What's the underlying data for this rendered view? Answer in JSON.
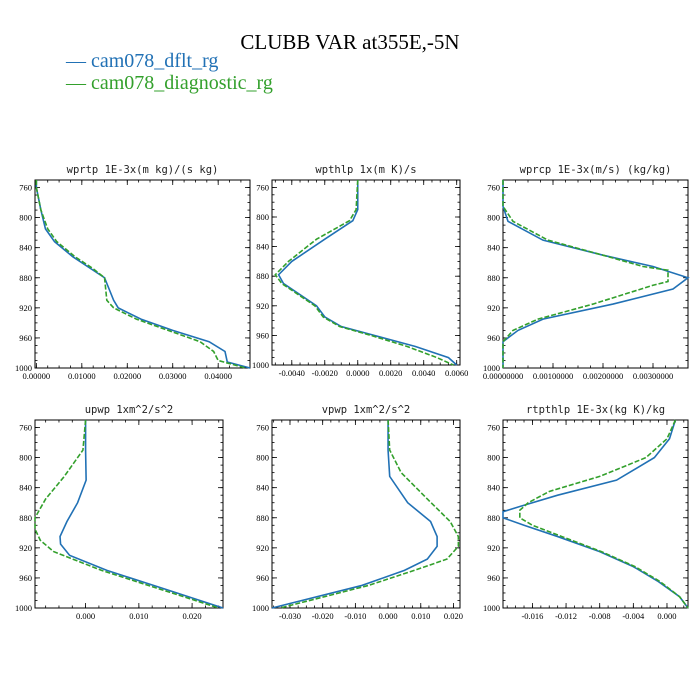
{
  "title": "CLUBB VAR at355E,-5N",
  "legend": [
    {
      "label": "— cam078_dflt_rg",
      "color": "#2171b5"
    },
    {
      "label": "— cam078_diagnostic_rg",
      "color": "#33a02c"
    }
  ],
  "chart_data": [
    {
      "type": "line",
      "title": "wprtp  1E-3x(m kg)/(s kg)",
      "xlim": [
        -0.0003,
        0.047
      ],
      "ylim": [
        1000,
        750
      ],
      "yticks": [
        760,
        800,
        840,
        880,
        920,
        960,
        1000
      ],
      "xticks": [
        0,
        0.01,
        0.02,
        0.03,
        0.04
      ],
      "xtick_labels": [
        "0.00000",
        "0.01000",
        "0.02000",
        "0.03000",
        "0.04000"
      ],
      "series": [
        {
          "name": "cam078_dflt_rg",
          "color": "#2171b5",
          "points": [
            [
              0.0,
              750
            ],
            [
              0.0,
              760
            ],
            [
              0.001,
              790
            ],
            [
              0.002,
              815
            ],
            [
              0.004,
              832
            ],
            [
              0.008,
              852
            ],
            [
              0.012,
              868
            ],
            [
              0.015,
              880
            ],
            [
              0.017,
              910
            ],
            [
              0.018,
              920
            ],
            [
              0.023,
              935
            ],
            [
              0.03,
              950
            ],
            [
              0.038,
              965
            ],
            [
              0.0415,
              978
            ],
            [
              0.042,
              992
            ],
            [
              0.047,
              1000
            ]
          ]
        },
        {
          "name": "cam078_diagnostic_rg",
          "color": "#33a02c",
          "points": [
            [
              0.0,
              750
            ],
            [
              0.0,
              760
            ],
            [
              0.001,
              790
            ],
            [
              0.0025,
              815
            ],
            [
              0.0045,
              832
            ],
            [
              0.0085,
              852
            ],
            [
              0.0125,
              868
            ],
            [
              0.015,
              880
            ],
            [
              0.0155,
              910
            ],
            [
              0.017,
              920
            ],
            [
              0.022,
              935
            ],
            [
              0.029,
              950
            ],
            [
              0.036,
              965
            ],
            [
              0.039,
              978
            ],
            [
              0.04,
              990
            ],
            [
              0.046,
              1000
            ]
          ]
        }
      ]
    },
    {
      "type": "line",
      "title": "wpthlp  1x(m K)/s",
      "xlim": [
        -0.0052,
        0.0062
      ],
      "ylim": [
        1000,
        750
      ],
      "yticks": [
        760,
        800,
        840,
        880,
        920,
        960,
        1000
      ],
      "xticks": [
        -0.004,
        -0.002,
        0,
        0.002,
        0.004,
        0.006
      ],
      "xtick_labels": [
        "-0.0040",
        "-0.0020",
        "0.0000",
        "0.0020",
        "0.0040",
        "0.0060"
      ],
      "series": [
        {
          "name": "cam078_dflt_rg",
          "color": "#2171b5",
          "points": [
            [
              0.0,
              750
            ],
            [
              0.0,
              790
            ],
            [
              -0.0003,
              805
            ],
            [
              -0.002,
              830
            ],
            [
              -0.004,
              860
            ],
            [
              -0.0048,
              878
            ],
            [
              -0.0045,
              890
            ],
            [
              -0.0035,
              905
            ],
            [
              -0.0025,
              920
            ],
            [
              -0.002,
              935
            ],
            [
              -0.001,
              948
            ],
            [
              0.001,
              960
            ],
            [
              0.0035,
              975
            ],
            [
              0.0055,
              990
            ],
            [
              0.006,
              1000
            ]
          ]
        },
        {
          "name": "cam078_diagnostic_rg",
          "color": "#33a02c",
          "points": [
            [
              0.0,
              750
            ],
            [
              -0.0001,
              790
            ],
            [
              -0.0005,
              805
            ],
            [
              -0.0025,
              830
            ],
            [
              -0.0042,
              860
            ],
            [
              -0.005,
              878
            ],
            [
              -0.0046,
              890
            ],
            [
              -0.0036,
              905
            ],
            [
              -0.0026,
              920
            ],
            [
              -0.0021,
              935
            ],
            [
              -0.0011,
              948
            ],
            [
              0.0008,
              960
            ],
            [
              0.003,
              975
            ],
            [
              0.0048,
              990
            ],
            [
              0.0058,
              1000
            ]
          ]
        }
      ]
    },
    {
      "type": "line",
      "title": "wprcp  1E-3x(m/s) (kg/kg)",
      "xlim": [
        0.0,
        0.0037
      ],
      "ylim": [
        1000,
        750
      ],
      "yticks": [
        760,
        800,
        840,
        880,
        920,
        960,
        1000
      ],
      "xticks": [
        0,
        0.001,
        0.002,
        0.003
      ],
      "xtick_labels": [
        "0.00000000",
        "0.00100000",
        "0.00200000",
        "0.00300000"
      ],
      "series": [
        {
          "name": "cam078_dflt_rg",
          "color": "#2171b5",
          "points": [
            [
              0.0,
              750
            ],
            [
              0.0,
              785
            ],
            [
              0.0001,
              805
            ],
            [
              0.0008,
              830
            ],
            [
              0.002,
              850
            ],
            [
              0.003,
              865
            ],
            [
              0.0037,
              880
            ],
            [
              0.0034,
              895
            ],
            [
              0.0022,
              915
            ],
            [
              0.0008,
              935
            ],
            [
              0.0003,
              950
            ],
            [
              0.0,
              965
            ],
            [
              0.0,
              1000
            ]
          ]
        },
        {
          "name": "cam078_diagnostic_rg",
          "color": "#33a02c",
          "points": [
            [
              0.0,
              750
            ],
            [
              0.0,
              785
            ],
            [
              0.0002,
              805
            ],
            [
              0.0009,
              830
            ],
            [
              0.002,
              850
            ],
            [
              0.0028,
              865
            ],
            [
              0.0033,
              870
            ],
            [
              0.0033,
              885
            ],
            [
              0.003,
              890
            ],
            [
              0.0018,
              915
            ],
            [
              0.0007,
              935
            ],
            [
              0.0002,
              950
            ],
            [
              0.0,
              965
            ],
            [
              0.0,
              1000
            ]
          ]
        }
      ]
    },
    {
      "type": "line",
      "title": "upwp  1xm^2/s^2",
      "xlim": [
        -0.0095,
        0.0258
      ],
      "ylim": [
        1000,
        750
      ],
      "yticks": [
        760,
        800,
        840,
        880,
        920,
        960,
        1000
      ],
      "xticks": [
        0,
        0.01,
        0.02
      ],
      "xtick_labels": [
        "0.000",
        "0.010",
        "0.020"
      ],
      "series": [
        {
          "name": "cam078_dflt_rg",
          "color": "#2171b5",
          "points": [
            [
              0.0,
              750
            ],
            [
              0.0,
              790
            ],
            [
              0.0001,
              830
            ],
            [
              -0.0015,
              860
            ],
            [
              -0.0035,
              885
            ],
            [
              -0.0048,
              905
            ],
            [
              -0.0047,
              915
            ],
            [
              -0.003,
              930
            ],
            [
              0.004,
              950
            ],
            [
              0.015,
              975
            ],
            [
              0.0258,
              1000
            ]
          ]
        },
        {
          "name": "cam078_diagnostic_rg",
          "color": "#33a02c",
          "points": [
            [
              0.0,
              750
            ],
            [
              -0.0005,
              790
            ],
            [
              -0.004,
              825
            ],
            [
              -0.0075,
              855
            ],
            [
              -0.0095,
              880
            ],
            [
              -0.0095,
              895
            ],
            [
              -0.0085,
              910
            ],
            [
              -0.006,
              925
            ],
            [
              0.003,
              950
            ],
            [
              0.014,
              975
            ],
            [
              0.025,
              1000
            ]
          ]
        }
      ]
    },
    {
      "type": "line",
      "title": "vpwp  1xm^2/s^2",
      "xlim": [
        -0.0355,
        0.022
      ],
      "ylim": [
        1000,
        750
      ],
      "yticks": [
        760,
        800,
        840,
        880,
        920,
        960,
        1000
      ],
      "xticks": [
        -0.03,
        -0.02,
        -0.01,
        0,
        0.01,
        0.02
      ],
      "xtick_labels": [
        "-0.030",
        "-0.020",
        "-0.010",
        "0.000",
        "0.010",
        "0.020"
      ],
      "series": [
        {
          "name": "cam078_dflt_rg",
          "color": "#2171b5",
          "points": [
            [
              0.0,
              750
            ],
            [
              0.0,
              790
            ],
            [
              0.0005,
              825
            ],
            [
              0.006,
              860
            ],
            [
              0.013,
              885
            ],
            [
              0.015,
              905
            ],
            [
              0.015,
              918
            ],
            [
              0.012,
              935
            ],
            [
              0.005,
              950
            ],
            [
              -0.008,
              970
            ],
            [
              -0.0355,
              1000
            ]
          ]
        },
        {
          "name": "cam078_diagnostic_rg",
          "color": "#33a02c",
          "points": [
            [
              0.0,
              750
            ],
            [
              0.0005,
              790
            ],
            [
              0.004,
              820
            ],
            [
              0.012,
              855
            ],
            [
              0.019,
              885
            ],
            [
              0.0215,
              905
            ],
            [
              0.0215,
              918
            ],
            [
              0.018,
              935
            ],
            [
              0.008,
              950
            ],
            [
              -0.006,
              970
            ],
            [
              -0.033,
              1000
            ]
          ]
        }
      ]
    },
    {
      "type": "line",
      "title": "rtpthlp  1E-3x(kg K)/kg",
      "xlim": [
        -0.0195,
        0.0025
      ],
      "ylim": [
        1000,
        750
      ],
      "yticks": [
        760,
        800,
        840,
        880,
        920,
        960,
        1000
      ],
      "xticks": [
        -0.016,
        -0.012,
        -0.008,
        -0.004,
        0
      ],
      "xtick_labels": [
        "-0.016",
        "-0.012",
        "-0.008",
        "-0.004",
        "0.000"
      ],
      "series": [
        {
          "name": "cam078_dflt_rg",
          "color": "#2171b5",
          "points": [
            [
              0.001,
              750
            ],
            [
              0.0003,
              775
            ],
            [
              -0.0015,
              800
            ],
            [
              -0.006,
              830
            ],
            [
              -0.013,
              850
            ],
            [
              -0.0175,
              865
            ],
            [
              -0.0195,
              872
            ],
            [
              -0.0195,
              880
            ],
            [
              -0.017,
              890
            ],
            [
              -0.013,
              905
            ],
            [
              -0.008,
              925
            ],
            [
              -0.004,
              945
            ],
            [
              -0.001,
              965
            ],
            [
              0.0015,
              985
            ],
            [
              0.0025,
              1000
            ]
          ]
        },
        {
          "name": "cam078_diagnostic_rg",
          "color": "#33a02c",
          "points": [
            [
              0.001,
              750
            ],
            [
              0.0,
              775
            ],
            [
              -0.0025,
              800
            ],
            [
              -0.008,
              825
            ],
            [
              -0.014,
              845
            ],
            [
              -0.0165,
              860
            ],
            [
              -0.0175,
              870
            ],
            [
              -0.0175,
              880
            ],
            [
              -0.016,
              890
            ],
            [
              -0.0125,
              905
            ],
            [
              -0.0078,
              925
            ],
            [
              -0.0038,
              945
            ],
            [
              -0.0008,
              965
            ],
            [
              0.0015,
              985
            ],
            [
              0.0025,
              1000
            ]
          ]
        }
      ]
    }
  ]
}
